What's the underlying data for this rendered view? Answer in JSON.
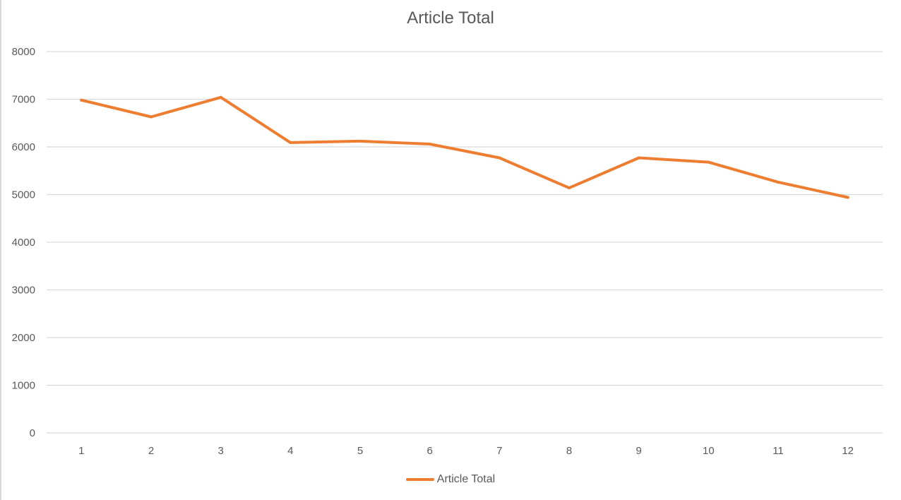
{
  "chart_data": {
    "type": "line",
    "title": "Article Total",
    "xlabel": "",
    "ylabel": "",
    "categories": [
      "1",
      "2",
      "3",
      "4",
      "5",
      "6",
      "7",
      "8",
      "9",
      "10",
      "11",
      "12"
    ],
    "series": [
      {
        "name": "Article Total",
        "color": "#ED7D31",
        "values": [
          6980,
          6630,
          7040,
          6090,
          6120,
          6060,
          5770,
          5140,
          5770,
          5680,
          5260,
          4940
        ]
      }
    ],
    "ylim": [
      0,
      8000
    ],
    "yticks": [
      "0",
      "1000",
      "2000",
      "3000",
      "4000",
      "5000",
      "6000",
      "7000",
      "8000"
    ],
    "grid": true,
    "legend_position": "bottom"
  },
  "colors": {
    "gridline": "#d9d9d9",
    "text": "#595959"
  }
}
